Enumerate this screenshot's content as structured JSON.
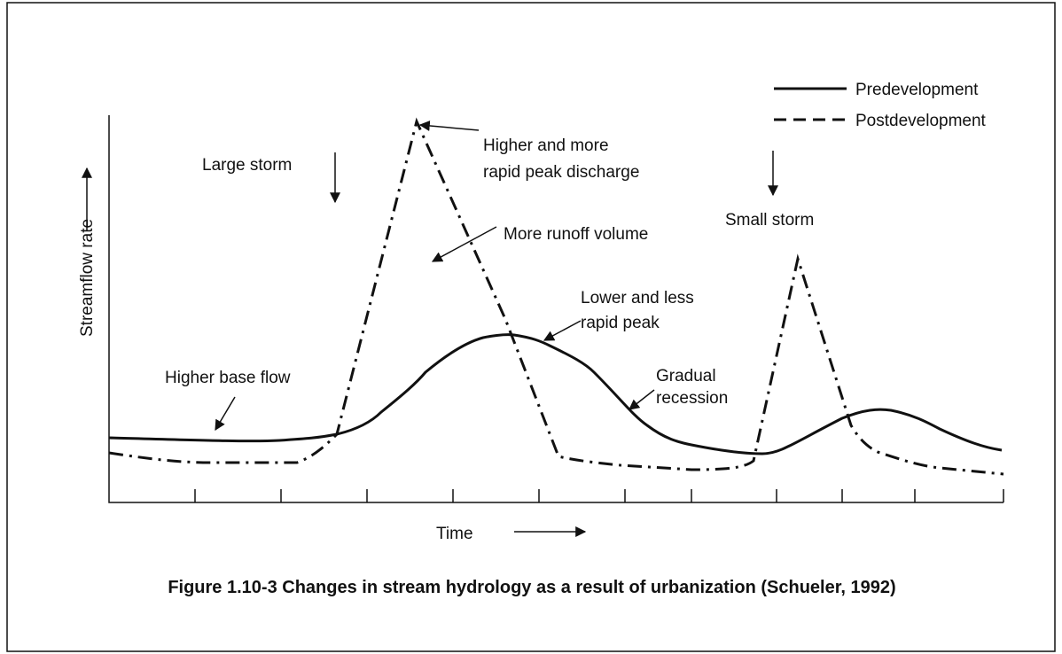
{
  "legend": {
    "items": [
      "Predevelopment",
      "Postdevelopment"
    ]
  },
  "axes": {
    "y_label": "Streamflow rate",
    "x_label": "Time"
  },
  "annotations": {
    "large_storm": "Large storm",
    "peak_discharge": [
      "Higher and more",
      "rapid peak discharge"
    ],
    "runoff_volume": "More runoff volume",
    "small_storm": "Small storm",
    "lower_peak": [
      "Lower and less",
      "rapid peak"
    ],
    "base_flow": "Higher base flow",
    "recession": [
      "Gradual",
      "recession"
    ]
  },
  "caption": "Figure 1.10-3 Changes in stream hydrology as a result of urbanization (Schueler, 1992)"
}
